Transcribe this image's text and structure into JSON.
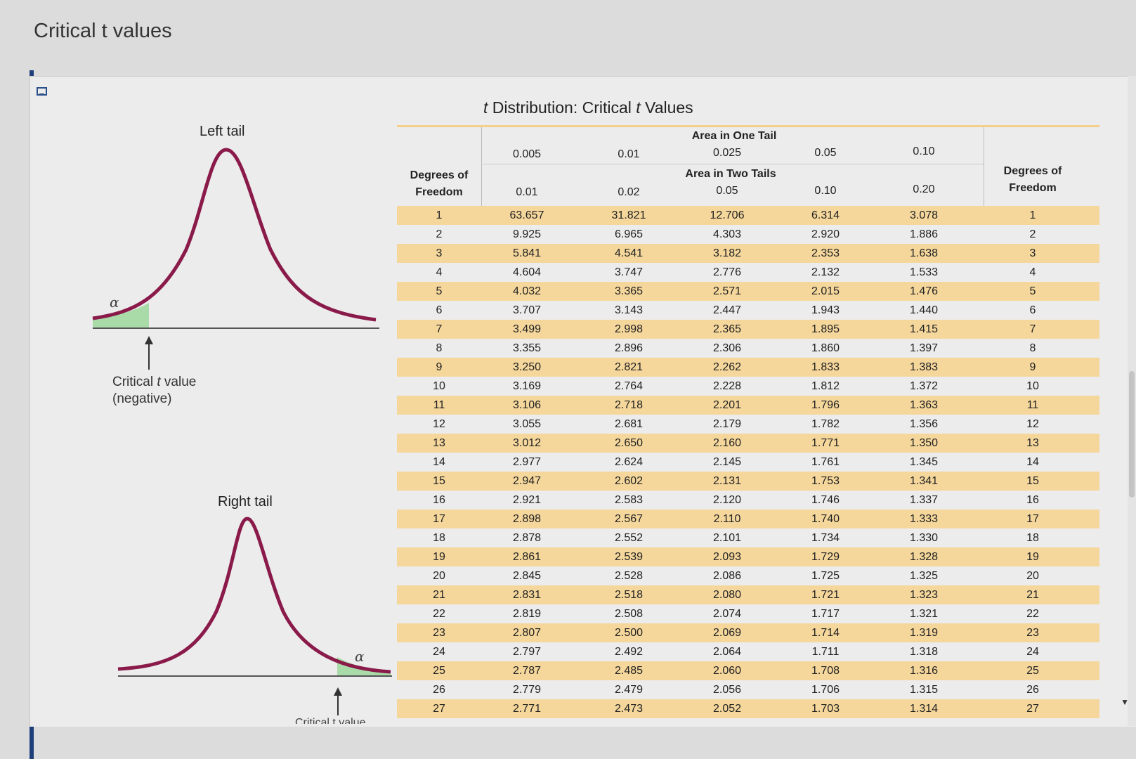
{
  "page": {
    "title": "Critical t values"
  },
  "panel": {
    "left_tail": {
      "label": "Left tail",
      "alpha": "α",
      "critical_label_line1": "Critical ",
      "critical_label_t": "t",
      "critical_label_line1b": " value",
      "critical_label_line2": "(negative)"
    },
    "right_tail": {
      "label": "Right tail",
      "alpha": "α",
      "critical_label": "Critical t value"
    }
  },
  "table": {
    "title_pre": "t",
    "title_post": " Distribution: Critical ",
    "title_t2": "t",
    "title_end": " Values",
    "one_tail_header": "Area in One Tail",
    "two_tail_header": "Area in Two Tails",
    "df_header_line1": "Degrees of",
    "df_header_line2": "Freedom",
    "one_tail": [
      "0.005",
      "0.01",
      "0.025",
      "0.05",
      "0.10"
    ],
    "two_tail": [
      "0.01",
      "0.02",
      "0.05",
      "0.10",
      "0.20"
    ],
    "rows": [
      {
        "df": "1",
        "v": [
          "63.657",
          "31.821",
          "12.706",
          "6.314",
          "3.078"
        ]
      },
      {
        "df": "2",
        "v": [
          "9.925",
          "6.965",
          "4.303",
          "2.920",
          "1.886"
        ]
      },
      {
        "df": "3",
        "v": [
          "5.841",
          "4.541",
          "3.182",
          "2.353",
          "1.638"
        ]
      },
      {
        "df": "4",
        "v": [
          "4.604",
          "3.747",
          "2.776",
          "2.132",
          "1.533"
        ]
      },
      {
        "df": "5",
        "v": [
          "4.032",
          "3.365",
          "2.571",
          "2.015",
          "1.476"
        ]
      },
      {
        "df": "6",
        "v": [
          "3.707",
          "3.143",
          "2.447",
          "1.943",
          "1.440"
        ]
      },
      {
        "df": "7",
        "v": [
          "3.499",
          "2.998",
          "2.365",
          "1.895",
          "1.415"
        ]
      },
      {
        "df": "8",
        "v": [
          "3.355",
          "2.896",
          "2.306",
          "1.860",
          "1.397"
        ]
      },
      {
        "df": "9",
        "v": [
          "3.250",
          "2.821",
          "2.262",
          "1.833",
          "1.383"
        ]
      },
      {
        "df": "10",
        "v": [
          "3.169",
          "2.764",
          "2.228",
          "1.812",
          "1.372"
        ]
      },
      {
        "df": "11",
        "v": [
          "3.106",
          "2.718",
          "2.201",
          "1.796",
          "1.363"
        ]
      },
      {
        "df": "12",
        "v": [
          "3.055",
          "2.681",
          "2.179",
          "1.782",
          "1.356"
        ]
      },
      {
        "df": "13",
        "v": [
          "3.012",
          "2.650",
          "2.160",
          "1.771",
          "1.350"
        ]
      },
      {
        "df": "14",
        "v": [
          "2.977",
          "2.624",
          "2.145",
          "1.761",
          "1.345"
        ]
      },
      {
        "df": "15",
        "v": [
          "2.947",
          "2.602",
          "2.131",
          "1.753",
          "1.341"
        ]
      },
      {
        "df": "16",
        "v": [
          "2.921",
          "2.583",
          "2.120",
          "1.746",
          "1.337"
        ]
      },
      {
        "df": "17",
        "v": [
          "2.898",
          "2.567",
          "2.110",
          "1.740",
          "1.333"
        ]
      },
      {
        "df": "18",
        "v": [
          "2.878",
          "2.552",
          "2.101",
          "1.734",
          "1.330"
        ]
      },
      {
        "df": "19",
        "v": [
          "2.861",
          "2.539",
          "2.093",
          "1.729",
          "1.328"
        ]
      },
      {
        "df": "20",
        "v": [
          "2.845",
          "2.528",
          "2.086",
          "1.725",
          "1.325"
        ]
      },
      {
        "df": "21",
        "v": [
          "2.831",
          "2.518",
          "2.080",
          "1.721",
          "1.323"
        ]
      },
      {
        "df": "22",
        "v": [
          "2.819",
          "2.508",
          "2.074",
          "1.717",
          "1.321"
        ]
      },
      {
        "df": "23",
        "v": [
          "2.807",
          "2.500",
          "2.069",
          "1.714",
          "1.319"
        ]
      },
      {
        "df": "24",
        "v": [
          "2.797",
          "2.492",
          "2.064",
          "1.711",
          "1.318"
        ]
      },
      {
        "df": "25",
        "v": [
          "2.787",
          "2.485",
          "2.060",
          "1.708",
          "1.316"
        ]
      },
      {
        "df": "26",
        "v": [
          "2.779",
          "2.479",
          "2.056",
          "1.706",
          "1.315"
        ]
      },
      {
        "df": "27",
        "v": [
          "2.771",
          "2.473",
          "2.052",
          "1.703",
          "1.314"
        ]
      }
    ]
  },
  "colors": {
    "band": "#f5d79c",
    "curve": "#8a1a4a",
    "tail_fill": "#a8dba8",
    "header_rule": "#f4d08a"
  }
}
